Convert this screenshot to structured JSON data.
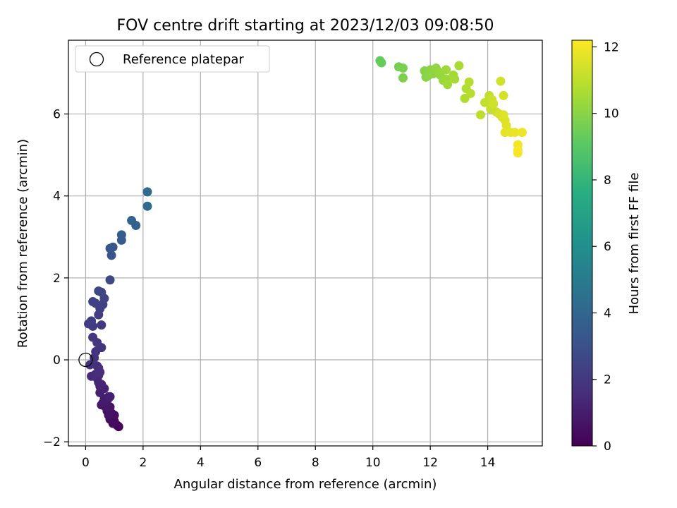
{
  "chart_data": {
    "type": "scatter",
    "title": "FOV centre drift starting at 2023/12/03 09:08:50",
    "xlabel": "Angular distance from reference (arcmin)",
    "ylabel": "Rotation from reference (arcmin)",
    "xlim": [
      -0.6,
      15.9
    ],
    "ylim": [
      -2.1,
      7.8
    ],
    "xticks": [
      0,
      2,
      4,
      6,
      8,
      10,
      12,
      14
    ],
    "yticks": [
      -2,
      0,
      2,
      4,
      6
    ],
    "grid": true,
    "legend": {
      "placement": "top-left",
      "entries": [
        "Reference platepar"
      ]
    },
    "reference_point": {
      "x": 0,
      "y": 0
    },
    "colorbar": {
      "label": "Hours from first FF file",
      "range": [
        0,
        12.2
      ],
      "ticks": [
        0,
        2,
        4,
        6,
        8,
        10,
        12
      ],
      "colormap": "viridis"
    },
    "columns": [
      "x",
      "y",
      "hours"
    ],
    "points": [
      [
        1.15,
        -1.63,
        0.1
      ],
      [
        1.1,
        -1.6,
        0.2
      ],
      [
        0.95,
        -1.55,
        0.3
      ],
      [
        1.0,
        -1.5,
        0.35
      ],
      [
        0.85,
        -1.45,
        0.4
      ],
      [
        1.0,
        -1.35,
        0.45
      ],
      [
        0.9,
        -1.3,
        0.5
      ],
      [
        0.8,
        -1.35,
        0.55
      ],
      [
        0.75,
        -1.25,
        0.6
      ],
      [
        0.85,
        -1.15,
        0.7
      ],
      [
        0.7,
        -1.15,
        0.75
      ],
      [
        0.55,
        -1.1,
        0.8
      ],
      [
        0.6,
        -1.05,
        0.85
      ],
      [
        0.75,
        -1.0,
        0.9
      ],
      [
        0.65,
        -0.95,
        0.95
      ],
      [
        0.85,
        -0.9,
        1.0
      ],
      [
        0.8,
        -0.9,
        1.05
      ],
      [
        0.5,
        -0.8,
        1.1
      ],
      [
        0.65,
        -0.7,
        1.15
      ],
      [
        0.5,
        -0.65,
        1.2
      ],
      [
        0.55,
        -0.6,
        1.25
      ],
      [
        0.45,
        -0.55,
        1.3
      ],
      [
        0.4,
        -0.45,
        1.35
      ],
      [
        0.45,
        -0.38,
        1.4
      ],
      [
        0.2,
        -0.4,
        1.45
      ],
      [
        0.35,
        -0.35,
        1.5
      ],
      [
        0.5,
        -0.3,
        1.55
      ],
      [
        0.45,
        -0.2,
        1.6
      ],
      [
        0.4,
        -0.15,
        1.65
      ],
      [
        0.15,
        -0.12,
        1.7
      ],
      [
        0.3,
        0.05,
        1.75
      ],
      [
        0.35,
        0.2,
        1.8
      ],
      [
        0.55,
        0.3,
        1.85
      ],
      [
        0.4,
        0.42,
        1.9
      ],
      [
        0.25,
        0.55,
        1.95
      ],
      [
        0.55,
        0.85,
        2.0
      ],
      [
        0.25,
        0.82,
        2.05
      ],
      [
        0.1,
        0.88,
        2.1
      ],
      [
        0.2,
        0.95,
        2.15
      ],
      [
        0.45,
        1.1,
        2.2
      ],
      [
        0.5,
        1.25,
        2.25
      ],
      [
        0.6,
        1.35,
        2.3
      ],
      [
        0.35,
        1.38,
        2.35
      ],
      [
        0.25,
        1.42,
        2.4
      ],
      [
        0.65,
        1.5,
        2.45
      ],
      [
        0.55,
        1.65,
        2.5
      ],
      [
        0.45,
        1.68,
        2.55
      ],
      [
        0.85,
        1.95,
        2.6
      ],
      [
        0.9,
        2.55,
        3.2
      ],
      [
        0.95,
        2.75,
        3.3
      ],
      [
        0.85,
        2.72,
        3.35
      ],
      [
        1.25,
        2.92,
        3.5
      ],
      [
        1.25,
        3.05,
        3.55
      ],
      [
        1.75,
        3.28,
        3.8
      ],
      [
        1.6,
        3.4,
        3.85
      ],
      [
        2.15,
        3.75,
        4.2
      ],
      [
        2.15,
        4.1,
        4.3
      ],
      [
        10.25,
        7.3,
        9.2
      ],
      [
        10.3,
        7.25,
        9.3
      ],
      [
        10.9,
        7.15,
        9.6
      ],
      [
        11.05,
        7.12,
        9.7
      ],
      [
        11.05,
        6.88,
        9.75
      ],
      [
        11.8,
        7.05,
        9.9
      ],
      [
        11.85,
        6.9,
        9.95
      ],
      [
        12.0,
        7.08,
        10.0
      ],
      [
        11.95,
        6.95,
        10.05
      ],
      [
        12.1,
        6.98,
        10.1
      ],
      [
        12.2,
        7.12,
        10.15
      ],
      [
        12.35,
        6.95,
        10.2
      ],
      [
        12.3,
        7.02,
        10.25
      ],
      [
        12.45,
        6.82,
        10.3
      ],
      [
        12.55,
        6.85,
        10.35
      ],
      [
        12.55,
        7.08,
        10.4
      ],
      [
        12.6,
        6.72,
        10.45
      ],
      [
        12.8,
        6.95,
        10.5
      ],
      [
        12.85,
        6.85,
        10.55
      ],
      [
        13.0,
        7.18,
        10.6
      ],
      [
        13.2,
        6.38,
        10.7
      ],
      [
        13.25,
        6.62,
        10.75
      ],
      [
        13.35,
        6.78,
        10.8
      ],
      [
        13.4,
        6.5,
        10.85
      ],
      [
        13.75,
        5.98,
        11.0
      ],
      [
        13.9,
        6.28,
        11.05
      ],
      [
        14.05,
        6.45,
        11.1
      ],
      [
        14.1,
        6.12,
        11.15
      ],
      [
        14.15,
        6.35,
        11.2
      ],
      [
        14.3,
        6.05,
        11.25
      ],
      [
        14.2,
        6.25,
        11.3
      ],
      [
        14.45,
        6.8,
        11.35
      ],
      [
        14.55,
        6.45,
        11.4
      ],
      [
        14.4,
        6.0,
        11.45
      ],
      [
        14.5,
        5.92,
        11.5
      ],
      [
        14.6,
        5.85,
        11.55
      ],
      [
        14.55,
        5.98,
        11.6
      ],
      [
        14.65,
        5.72,
        11.65
      ],
      [
        14.6,
        5.55,
        11.7
      ],
      [
        14.8,
        5.55,
        11.8
      ],
      [
        14.95,
        5.55,
        11.85
      ],
      [
        15.2,
        5.55,
        11.9
      ],
      [
        15.05,
        5.25,
        12.0
      ],
      [
        15.05,
        5.12,
        12.05
      ],
      [
        15.05,
        5.05,
        12.1
      ]
    ]
  }
}
